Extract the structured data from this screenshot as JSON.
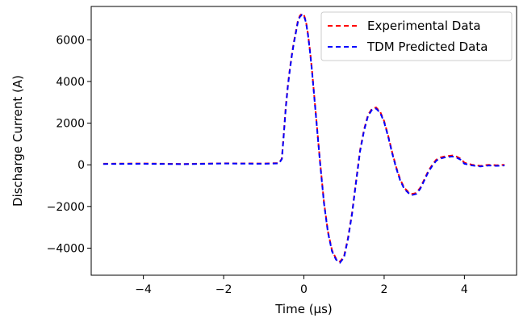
{
  "chart_data": {
    "type": "line",
    "title": "",
    "xlabel": "Time (µs)",
    "ylabel": "Discharge Current (A)",
    "xlim": [
      -5.3,
      5.3
    ],
    "ylim": [
      -5300,
      7600
    ],
    "xticks": [
      -4,
      -2,
      0,
      2,
      4
    ],
    "xtick_labels": [
      "−4",
      "−2",
      "0",
      "2",
      "4"
    ],
    "yticks": [
      -4000,
      -2000,
      0,
      2000,
      4000,
      6000
    ],
    "ytick_labels": [
      "−4000",
      "−2000",
      "0",
      "2000",
      "4000",
      "6000"
    ],
    "grid": false,
    "legend_position": "top-right",
    "series": [
      {
        "name": "Experimental Data",
        "color": "#ff0000",
        "style": "dashed",
        "x": [
          -5.0,
          -4.0,
          -3.0,
          -2.0,
          -1.0,
          -0.62,
          -0.55,
          -0.5,
          -0.45,
          -0.4,
          -0.35,
          -0.3,
          -0.25,
          -0.2,
          -0.15,
          -0.1,
          -0.05,
          0.0,
          0.05,
          0.1,
          0.15,
          0.2,
          0.3,
          0.4,
          0.5,
          0.6,
          0.7,
          0.8,
          0.9,
          1.0,
          1.1,
          1.2,
          1.3,
          1.4,
          1.5,
          1.6,
          1.7,
          1.8,
          1.9,
          2.0,
          2.1,
          2.2,
          2.3,
          2.4,
          2.5,
          2.6,
          2.7,
          2.8,
          2.9,
          3.0,
          3.1,
          3.2,
          3.3,
          3.4,
          3.5,
          3.6,
          3.7,
          3.8,
          3.9,
          4.0,
          4.2,
          4.4,
          4.6,
          4.8,
          5.0
        ],
        "y": [
          50,
          60,
          40,
          70,
          60,
          80,
          300,
          1500,
          2800,
          3800,
          4600,
          5300,
          5900,
          6400,
          6900,
          7150,
          7250,
          7200,
          6900,
          6300,
          5500,
          4600,
          2400,
          200,
          -1800,
          -3200,
          -4100,
          -4500,
          -4650,
          -4400,
          -3500,
          -2300,
          -800,
          700,
          1700,
          2400,
          2700,
          2750,
          2550,
          2100,
          1400,
          600,
          -100,
          -700,
          -1100,
          -1300,
          -1400,
          -1350,
          -1100,
          -700,
          -300,
          0,
          250,
          350,
          400,
          420,
          450,
          400,
          300,
          100,
          0,
          -50,
          0,
          -20,
          0
        ]
      },
      {
        "name": "TDM Predicted Data",
        "color": "#0000ff",
        "style": "dashed",
        "x": [
          -5.0,
          -4.0,
          -3.0,
          -2.0,
          -1.0,
          -0.62,
          -0.55,
          -0.5,
          -0.45,
          -0.4,
          -0.35,
          -0.3,
          -0.25,
          -0.2,
          -0.15,
          -0.1,
          -0.05,
          0.0,
          0.05,
          0.1,
          0.15,
          0.2,
          0.3,
          0.4,
          0.5,
          0.6,
          0.7,
          0.8,
          0.9,
          1.0,
          1.1,
          1.2,
          1.3,
          1.4,
          1.5,
          1.6,
          1.7,
          1.8,
          1.9,
          2.0,
          2.1,
          2.2,
          2.3,
          2.4,
          2.5,
          2.6,
          2.7,
          2.8,
          2.9,
          3.0,
          3.1,
          3.2,
          3.3,
          3.4,
          3.5,
          3.6,
          3.7,
          3.8,
          3.9,
          4.0,
          4.2,
          4.4,
          4.6,
          4.8,
          5.0
        ],
        "y": [
          40,
          50,
          30,
          60,
          50,
          70,
          280,
          1450,
          2750,
          3750,
          4550,
          5250,
          5850,
          6350,
          6850,
          7100,
          7200,
          7150,
          6850,
          6250,
          5450,
          4550,
          2350,
          150,
          -1850,
          -3250,
          -4150,
          -4550,
          -4700,
          -4450,
          -3550,
          -2350,
          -850,
          650,
          1650,
          2350,
          2650,
          2700,
          2500,
          2050,
          1350,
          550,
          -150,
          -750,
          -1150,
          -1350,
          -1450,
          -1400,
          -1150,
          -750,
          -350,
          -50,
          200,
          300,
          350,
          380,
          400,
          350,
          250,
          50,
          -30,
          -80,
          -30,
          -50,
          -30
        ]
      }
    ]
  }
}
